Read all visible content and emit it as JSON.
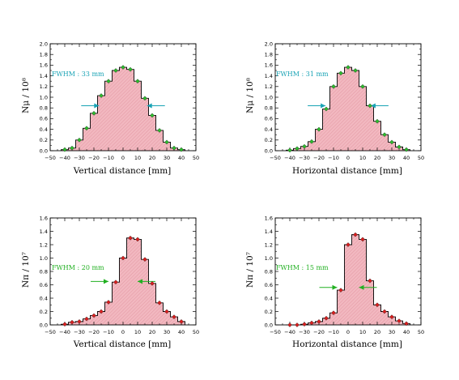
{
  "colors": {
    "fill": "#f2b8c0",
    "hatch": "#e0909c",
    "outline": "#000000",
    "muon_marker": "#2dba2d",
    "pion_marker": "#d81e1e",
    "fwhm_muon": "#19a3b5",
    "fwhm_pion": "#22b022"
  },
  "chart_data": [
    {
      "type": "bar",
      "panel": "top-left",
      "xlabel": "Vertical distance [mm]",
      "ylabel": "Nμ / 10⁸",
      "xlim": [
        -50,
        50
      ],
      "ylim": [
        0,
        2.0
      ],
      "xticks": [
        "−50",
        "−40",
        "−30",
        "−20",
        "−10",
        "0",
        "10",
        "20",
        "30",
        "40",
        "50"
      ],
      "yticks": [
        "0.0",
        "0.2",
        "0.4",
        "0.6",
        "0.8",
        "1.0",
        "1.2",
        "1.4",
        "1.6",
        "1.8",
        "2.0"
      ],
      "bin_width": 5,
      "x": [
        -40,
        -35,
        -30,
        -25,
        -20,
        -15,
        -10,
        -5,
        0,
        5,
        10,
        15,
        20,
        25,
        30,
        35,
        40
      ],
      "values": [
        0.02,
        0.05,
        0.2,
        0.42,
        0.7,
        1.03,
        1.3,
        1.5,
        1.56,
        1.52,
        1.3,
        0.98,
        0.66,
        0.38,
        0.16,
        0.05,
        0.02
      ],
      "fwhm": {
        "label": "FWHM : 33 mm",
        "left": -16.5,
        "right": 16.5,
        "height": 0.84
      },
      "marker": "muon"
    },
    {
      "type": "bar",
      "panel": "top-right",
      "xlabel": "Horizontal distance [mm]",
      "ylabel": "Nμ / 10⁸",
      "xlim": [
        -50,
        50
      ],
      "ylim": [
        0,
        2.0
      ],
      "xticks": [
        "−50",
        "−40",
        "−30",
        "−20",
        "−10",
        "0",
        "10",
        "20",
        "30",
        "40",
        "50"
      ],
      "yticks": [
        "0.0",
        "0.2",
        "0.4",
        "0.6",
        "0.8",
        "1.0",
        "1.2",
        "1.4",
        "1.6",
        "1.8",
        "2.0"
      ],
      "bin_width": 5,
      "x": [
        -40,
        -35,
        -30,
        -25,
        -20,
        -15,
        -10,
        -5,
        0,
        5,
        10,
        15,
        20,
        25,
        30,
        35,
        40
      ],
      "values": [
        0.01,
        0.04,
        0.08,
        0.17,
        0.4,
        0.78,
        1.2,
        1.45,
        1.56,
        1.5,
        1.2,
        0.84,
        0.55,
        0.3,
        0.16,
        0.07,
        0.02
      ],
      "fwhm": {
        "label": "FWHM : 31 mm",
        "left": -15.5,
        "right": 15.5,
        "height": 0.84
      },
      "marker": "muon"
    },
    {
      "type": "bar",
      "panel": "bottom-left",
      "xlabel": "Vertical distance [mm]",
      "ylabel": "Nπ / 10⁷",
      "xlim": [
        -50,
        50
      ],
      "ylim": [
        0,
        1.6
      ],
      "xticks": [
        "−50",
        "−40",
        "−30",
        "−20",
        "−10",
        "0",
        "10",
        "20",
        "30",
        "40",
        "50"
      ],
      "yticks": [
        "0.0",
        "0.2",
        "0.4",
        "0.6",
        "0.8",
        "1.0",
        "1.2",
        "1.4",
        "1.6"
      ],
      "bin_width": 5,
      "x": [
        -40,
        -35,
        -30,
        -25,
        -20,
        -15,
        -10,
        -5,
        0,
        5,
        10,
        15,
        20,
        25,
        30,
        35,
        40
      ],
      "values": [
        0.01,
        0.04,
        0.05,
        0.09,
        0.14,
        0.2,
        0.34,
        0.64,
        1.0,
        1.3,
        1.28,
        0.98,
        0.62,
        0.33,
        0.2,
        0.12,
        0.05
      ],
      "fwhm": {
        "label": "FWHM : 20 mm",
        "left": -10,
        "right": 10,
        "height": 0.65
      },
      "marker": "pion"
    },
    {
      "type": "bar",
      "panel": "bottom-right",
      "xlabel": "Horizontal distance [mm]",
      "ylabel": "Nπ / 10⁷",
      "xlim": [
        -50,
        50
      ],
      "ylim": [
        0,
        1.6
      ],
      "xticks": [
        "−50",
        "−40",
        "−30",
        "−20",
        "−10",
        "0",
        "10",
        "20",
        "30",
        "40",
        "50"
      ],
      "yticks": [
        "0.0",
        "0.2",
        "0.4",
        "0.6",
        "0.8",
        "1.0",
        "1.2",
        "1.4",
        "1.6"
      ],
      "bin_width": 5,
      "x": [
        -40,
        -35,
        -30,
        -25,
        -20,
        -15,
        -10,
        -5,
        0,
        5,
        10,
        15,
        20,
        25,
        30,
        35,
        40
      ],
      "values": [
        0.0,
        0.0,
        0.01,
        0.03,
        0.05,
        0.1,
        0.18,
        0.52,
        1.2,
        1.35,
        1.28,
        0.66,
        0.3,
        0.2,
        0.12,
        0.06,
        0.02
      ],
      "fwhm": {
        "label": "FWHM : 15 mm",
        "left": -7.5,
        "right": 7.5,
        "height": 0.56
      },
      "marker": "pion"
    }
  ]
}
